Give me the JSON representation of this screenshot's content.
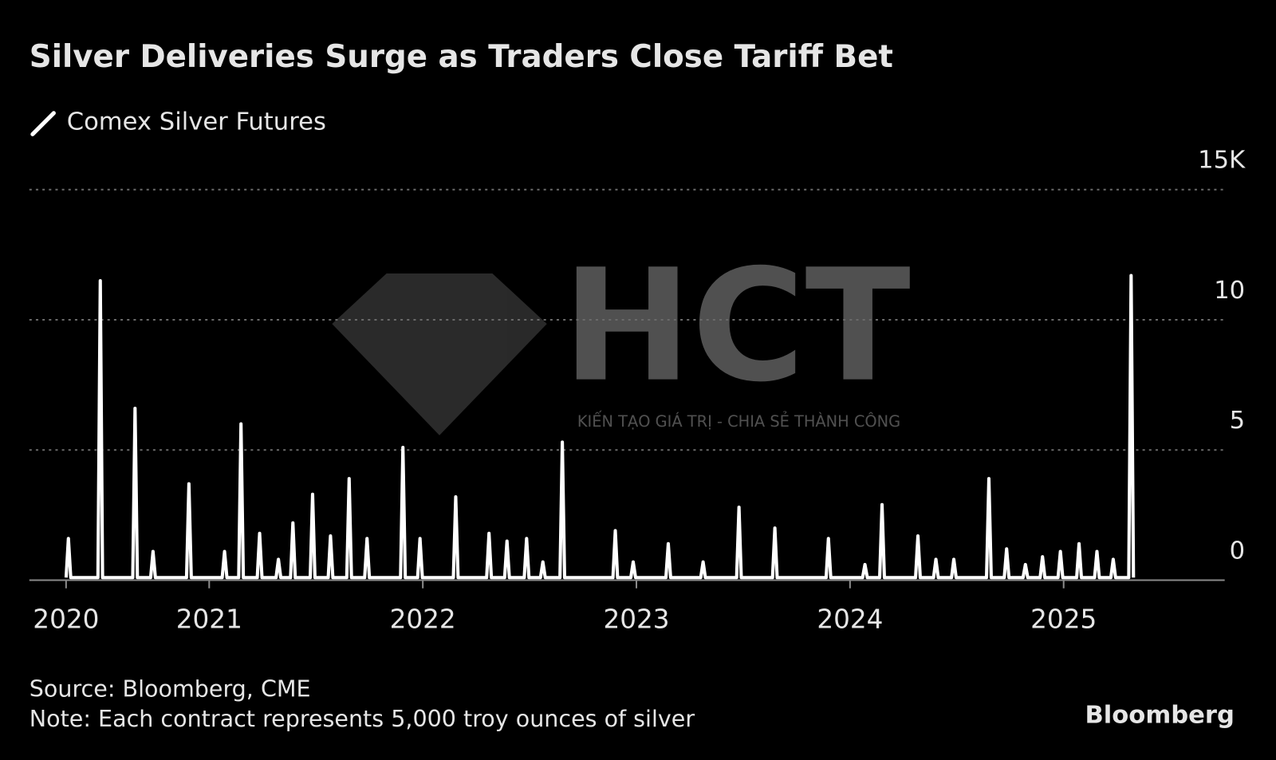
{
  "chart_data": {
    "type": "line",
    "title": "Silver Deliveries Surge as Traders Close Tariff Bet",
    "source": "Source: Bloomberg, CME",
    "note": "Note: Each contract represents 5,000 troy ounces of silver",
    "brand": "Bloomberg",
    "xlim": [
      2020.158,
      2025.754
    ],
    "xticks": [
      {
        "value": 2020.33,
        "label": "2020"
      },
      2021,
      2022,
      2023,
      2024,
      2025
    ],
    "ylim": [
      0,
      15
    ],
    "yticks": [
      0,
      5,
      10,
      {
        "value": 15,
        "label": "15K"
      }
    ],
    "grid": true,
    "series": [
      {
        "name": "Comex Silver Futures",
        "color": "#ffffff",
        "x": [
          2020.33,
          2020.341,
          2020.352,
          2020.479,
          2020.49,
          2020.501,
          2020.642,
          2020.653,
          2020.664,
          2020.726,
          2020.737,
          2020.748,
          2020.894,
          2020.905,
          2020.916,
          2021.061,
          2021.072,
          2021.083,
          2021.138,
          2021.149,
          2021.16,
          2021.225,
          2021.236,
          2021.247,
          2021.313,
          2021.324,
          2021.335,
          2021.381,
          2021.392,
          2021.403,
          2021.473,
          2021.484,
          2021.495,
          2021.557,
          2021.568,
          2021.579,
          2021.644,
          2021.655,
          2021.666,
          2021.728,
          2021.739,
          2021.75,
          2021.896,
          2021.907,
          2021.918,
          2021.976,
          2021.987,
          2021.998,
          2022.143,
          2022.154,
          2022.165,
          2022.299,
          2022.31,
          2022.321,
          2022.383,
          2022.394,
          2022.405,
          2022.475,
          2022.486,
          2022.497,
          2022.551,
          2022.562,
          2022.573,
          2022.642,
          2022.653,
          2022.664,
          2022.89,
          2022.901,
          2022.912,
          2022.974,
          2022.985,
          2022.996,
          2023.138,
          2023.149,
          2023.16,
          2023.301,
          2023.312,
          2023.323,
          2023.469,
          2023.48,
          2023.491,
          2023.637,
          2023.648,
          2023.659,
          2023.888,
          2023.899,
          2023.91,
          2024.059,
          2024.07,
          2024.081,
          2024.139,
          2024.15,
          2024.161,
          2024.307,
          2024.318,
          2024.329,
          2024.391,
          2024.402,
          2024.413,
          2024.475,
          2024.486,
          2024.497,
          2024.639,
          2024.65,
          2024.661,
          2024.722,
          2024.733,
          2024.744,
          2024.81,
          2024.821,
          2024.832,
          2024.89,
          2024.901,
          2024.912,
          2024.974,
          2024.985,
          2024.996,
          2025.061,
          2025.072,
          2025.083,
          2025.145,
          2025.156,
          2025.167,
          2025.221,
          2025.232,
          2025.243,
          2025.305,
          2025.316,
          2025.327
        ],
        "values": [
          0.1,
          1.6,
          0.1,
          0.1,
          11.5,
          0.1,
          0.1,
          6.6,
          0.1,
          0.1,
          1.1,
          0.1,
          0.1,
          3.7,
          0.1,
          0.1,
          1.1,
          0.1,
          0.1,
          6.0,
          0.1,
          0.1,
          1.8,
          0.1,
          0.1,
          0.8,
          0.1,
          0.1,
          2.2,
          0.1,
          0.1,
          3.3,
          0.1,
          0.1,
          1.7,
          0.1,
          0.1,
          3.9,
          0.1,
          0.1,
          1.6,
          0.1,
          0.1,
          5.1,
          0.1,
          0.1,
          1.6,
          0.1,
          0.1,
          3.2,
          0.1,
          0.1,
          1.8,
          0.1,
          0.1,
          1.5,
          0.1,
          0.1,
          1.6,
          0.1,
          0.1,
          0.7,
          0.1,
          0.1,
          5.3,
          0.1,
          0.1,
          1.9,
          0.1,
          0.1,
          0.7,
          0.1,
          0.1,
          1.4,
          0.1,
          0.1,
          0.7,
          0.1,
          0.1,
          2.8,
          0.1,
          0.1,
          2.0,
          0.1,
          0.1,
          1.6,
          0.1,
          0.1,
          0.6,
          0.1,
          0.1,
          2.9,
          0.1,
          0.1,
          1.7,
          0.1,
          0.1,
          0.8,
          0.1,
          0.1,
          0.8,
          0.1,
          0.1,
          3.9,
          0.1,
          0.1,
          1.2,
          0.1,
          0.1,
          0.6,
          0.1,
          0.1,
          0.9,
          0.1,
          0.1,
          1.1,
          0.1,
          0.1,
          1.4,
          0.1,
          0.1,
          1.1,
          0.1,
          0.1,
          0.8,
          0.1,
          0.1,
          11.7,
          0.1
        ]
      }
    ]
  },
  "watermark": {
    "logo": "HCT",
    "tagline": "KIẾN TẠO GIÁ TRỊ - CHIA SẺ THÀNH CÔNG"
  }
}
